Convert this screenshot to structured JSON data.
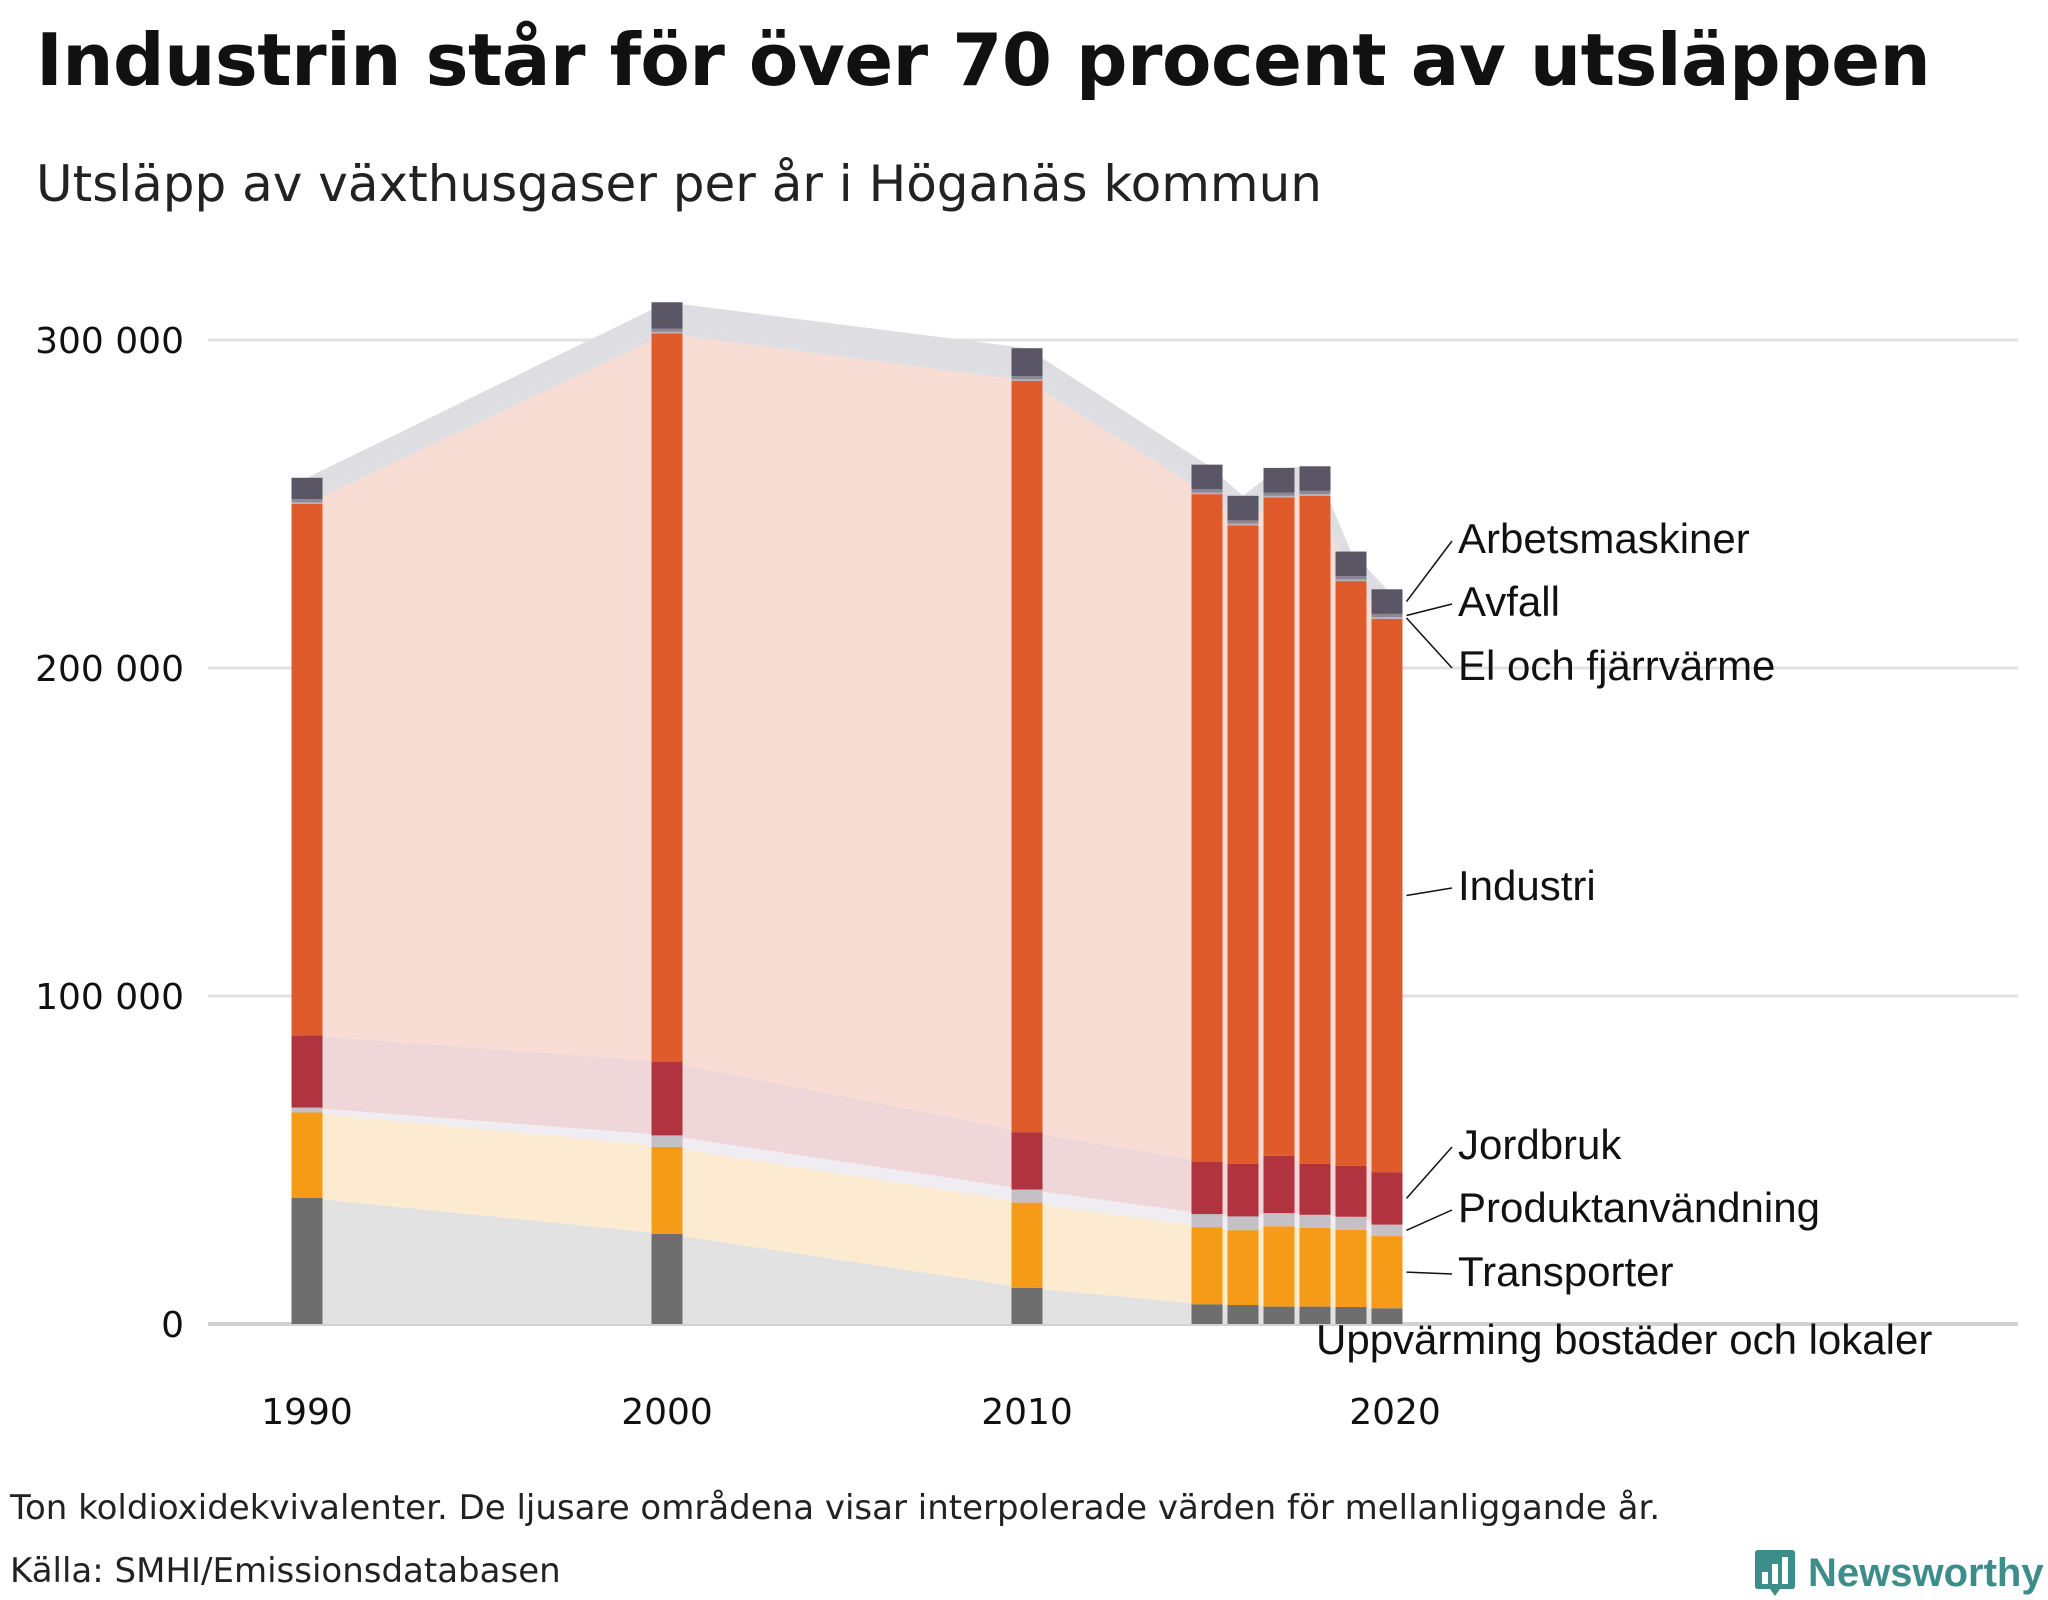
{
  "title": "Industrin står för över 70 procent av utsläppen",
  "subtitle": "Utsläpp av växthusgaser per år i Höganäs kommun",
  "note": "Ton koldioxidekvivalenter. De ljusare områdena visar interpolerade värden för mellanliggande år.",
  "source": "Källa: SMHI/Emissionsdatabasen",
  "brand": "Newsworthy",
  "colors": {
    "Uppvärming bostäder och lokaler": "#6e6e6e",
    "Transporter": "#f59b17",
    "Produktanvändning": "#c4c0c6",
    "Jordbruk": "#b1333f",
    "Industri": "#e05b2c",
    "El och fjärrvärme": "#b6b3bb",
    "Avfall": "#8b8894",
    "Arbetsmaskiner": "#5a5666",
    "brand": "#3d8d8a"
  },
  "chart_data": {
    "type": "bar",
    "stacked": true,
    "unit": "Ton koldioxidekvivalenter",
    "x": [
      1990,
      2000,
      2010,
      2015,
      2016,
      2017,
      2018,
      2019,
      2020
    ],
    "x_ticks": [
      1990,
      2000,
      2010,
      2020
    ],
    "y_ticks": [
      0,
      100000,
      200000,
      300000
    ],
    "y_tick_labels": [
      "0",
      "100 000",
      "200 000",
      "300 000"
    ],
    "ylim": [
      0,
      310000
    ],
    "grid": true,
    "series": [
      {
        "name": "Uppvärming bostäder och lokaler",
        "values": [
          38500,
          27500,
          11000,
          6000,
          5800,
          5300,
          5300,
          5200,
          4800
        ]
      },
      {
        "name": "Transporter",
        "values": [
          26000,
          26500,
          26000,
          23500,
          22800,
          24500,
          24000,
          23500,
          22000
        ]
      },
      {
        "name": "Produktanvändning",
        "values": [
          1500,
          3500,
          4000,
          4000,
          4200,
          4000,
          4000,
          4000,
          3500
        ]
      },
      {
        "name": "Jordbruk",
        "values": [
          22000,
          22500,
          17500,
          16000,
          16000,
          17500,
          15500,
          15500,
          16000
        ]
      },
      {
        "name": "Industri",
        "values": [
          162000,
          222000,
          229000,
          203500,
          194700,
          200700,
          203700,
          178300,
          168700
        ]
      },
      {
        "name": "El och fjärrvärme",
        "values": [
          500,
          500,
          500,
          500,
          500,
          500,
          500,
          500,
          500
        ]
      },
      {
        "name": "Avfall",
        "values": [
          1000,
          1000,
          1000,
          1000,
          1000,
          1000,
          1000,
          1000,
          1000
        ]
      },
      {
        "name": "Arbetsmaskiner",
        "values": [
          6500,
          8000,
          8500,
          7500,
          7500,
          7500,
          7500,
          7500,
          7500
        ]
      }
    ]
  }
}
